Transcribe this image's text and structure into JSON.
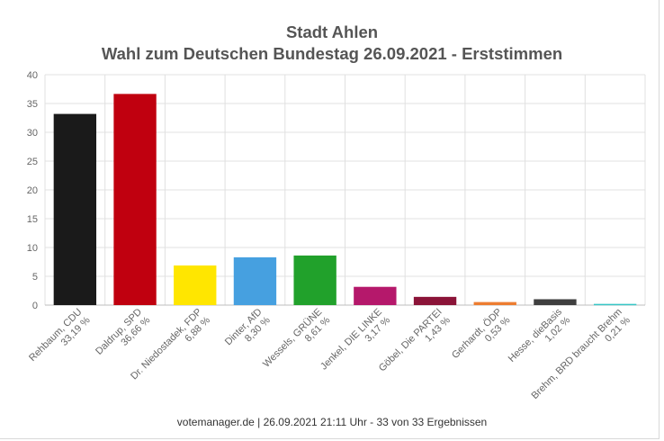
{
  "chart_data": {
    "type": "bar",
    "title": "Stadt Ahlen",
    "subtitle": "Wahl zum Deutschen Bundestag 26.09.2021  - Erststimmen",
    "ylim": [
      0,
      40
    ],
    "yticks": [
      0,
      5,
      10,
      15,
      20,
      25,
      30,
      35,
      40
    ],
    "grid": true,
    "categories": [
      {
        "name": "Rehbaum, CDU",
        "value_label": "33,19 %"
      },
      {
        "name": "Daldrup, SPD",
        "value_label": "36,66 %"
      },
      {
        "name": "Dr. Niedostadek, FDP",
        "value_label": "6,88 %"
      },
      {
        "name": "Dinter, AfD",
        "value_label": "8,30 %"
      },
      {
        "name": "Wessels, GRÜNE",
        "value_label": "8,61 %"
      },
      {
        "name": "Jenkel, DIE LINKE",
        "value_label": "3,17 %"
      },
      {
        "name": "Göbel, Die PARTEI",
        "value_label": "1,43 %"
      },
      {
        "name": "Gerhardt, ÖDP",
        "value_label": "0,53 %"
      },
      {
        "name": "Hesse, dieBasis",
        "value_label": "1,02 %"
      },
      {
        "name": "Brehm, BRD braucht Brehm",
        "value_label": "0,21 %"
      }
    ],
    "values": [
      33.19,
      36.66,
      6.88,
      8.3,
      8.61,
      3.17,
      1.43,
      0.53,
      1.02,
      0.21
    ],
    "colors": [
      "#1a1a1a",
      "#c0000f",
      "#ffe600",
      "#46a0e0",
      "#21a12b",
      "#b5186b",
      "#8b1438",
      "#ed7d31",
      "#3f3f3f",
      "#36c6c6"
    ]
  },
  "footer": "votemanager.de | 26.09.2021 21:11 Uhr - 33 von 33 Ergebnissen"
}
